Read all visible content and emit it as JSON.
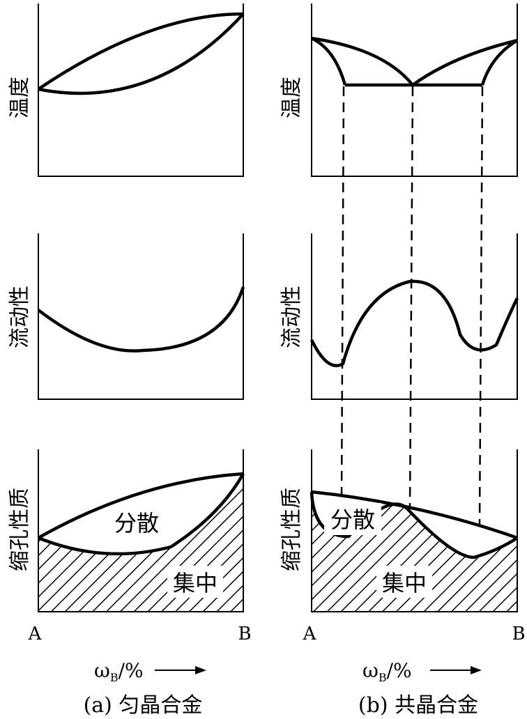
{
  "left": {
    "ylabels": {
      "temp": "温度",
      "fluidity": "流动性",
      "shrink": "缩孔性质"
    },
    "region_labels": {
      "dispersed": "分散",
      "concentrated": "集中"
    },
    "x_start": "A",
    "x_end": "B",
    "axis_label": "ω",
    "axis_sub": "B",
    "axis_unit": "/%",
    "caption": "(a) 匀晶合金"
  },
  "right": {
    "ylabels": {
      "temp": "温度",
      "fluidity": "流动性",
      "shrink": "缩孔性质"
    },
    "region_labels": {
      "dispersed": "分散",
      "concentrated": "集中"
    },
    "x_start": "A",
    "x_end": "B",
    "axis_label": "ω",
    "axis_sub": "B",
    "axis_unit": "/%",
    "caption": "(b) 共晶合金"
  },
  "colors": {
    "ink": "#000000",
    "background": "#ffffff"
  }
}
